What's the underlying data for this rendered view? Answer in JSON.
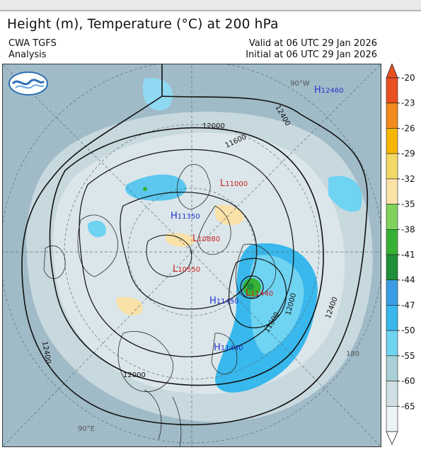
{
  "header": {
    "title": "Height (m), Temperature (°C) at 200 hPa",
    "model": "CWA TGFS",
    "product": "Analysis",
    "valid": "Valid at 06 UTC 29 Jan 2026",
    "initial": "Initial at 06 UTC 29 Jan 2026"
  },
  "map": {
    "projection": "polar stereographic (northern hemisphere)",
    "lon_labels": [
      "90°W",
      "180",
      "90°E"
    ],
    "contour_labels": [
      "12400",
      "12000",
      "11600",
      "12000",
      "11600",
      "12000",
      "12400",
      "12400"
    ],
    "highs": [
      {
        "letter": "H",
        "value": "12460"
      },
      {
        "letter": "H",
        "value": "11350"
      },
      {
        "letter": "H",
        "value": "11450"
      },
      {
        "letter": "H",
        "value": "11440"
      }
    ],
    "lows": [
      {
        "letter": "L",
        "value": "11000"
      },
      {
        "letter": "L",
        "value": "10880"
      },
      {
        "letter": "L",
        "value": "10550"
      },
      {
        "letter": "L",
        "value": "11440"
      }
    ]
  },
  "colorbar": {
    "unit": "°C",
    "levels": [
      "-20",
      "-23",
      "-26",
      "-29",
      "-32",
      "-35",
      "-38",
      "-41",
      "-44",
      "-47",
      "-50",
      "-55",
      "-60",
      "-65"
    ],
    "colors": [
      "#e8501f",
      "#f28a1f",
      "#f5b700",
      "#f2d866",
      "#f9e1a8",
      "#7fd35c",
      "#36b136",
      "#1f8f3a",
      "#3a9de3",
      "#38b8ec",
      "#6fd3f2",
      "#a9d0d6",
      "#cfdfe3",
      "#ecf3f5"
    ]
  },
  "colors": {
    "ocean_bg": "#9eb9c6",
    "contour": "#111111",
    "high_label": "#2233cc",
    "low_label": "#cc2222"
  }
}
